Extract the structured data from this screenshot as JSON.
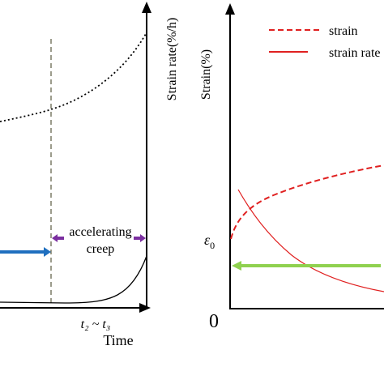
{
  "left_panel": {
    "y_axis_label": "Strain rate(%/h)",
    "x_axis_label": "Time",
    "time_tick": "t₂ ~ t₃",
    "stage_label_line1": "accelerating",
    "stage_label_line2": "creep",
    "colors": {
      "axis": "#000000",
      "dashed_divider": "#3a3a1a",
      "stage_arrow": "#1f6fbf",
      "stage_marker": "#7b2fa0",
      "curve": "#000000"
    }
  },
  "right_panel": {
    "y_axis_label": "Strain(%)",
    "origin_label": "0",
    "epsilon_label": "ε",
    "epsilon_subscript": "0",
    "legend": [
      {
        "label": "strain",
        "style": "dashed",
        "color": "#e02020"
      },
      {
        "label": "strain rate",
        "style": "solid",
        "color": "#e02020"
      }
    ],
    "colors": {
      "axis": "#000000",
      "strain_curve": "#e02020",
      "strain_rate_curve": "#e02020",
      "horizontal_arrow": "#8fd14f"
    }
  }
}
